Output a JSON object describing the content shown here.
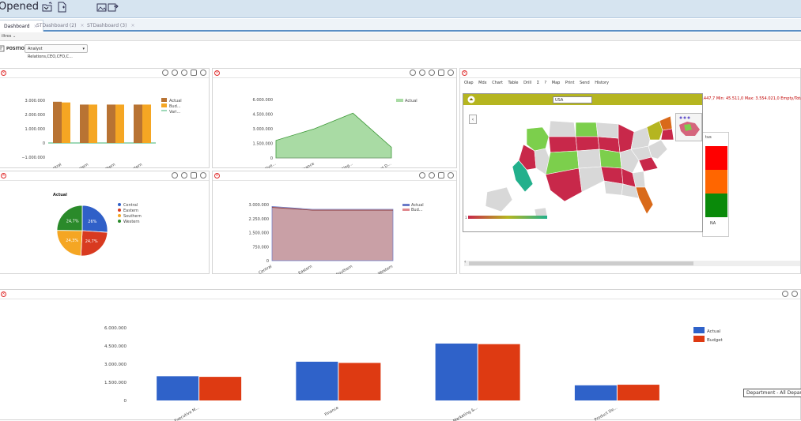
{
  "topbar": {
    "title": "Opened",
    "caret": "⌄"
  },
  "tabs": [
    {
      "label": "Dashboard",
      "close": "×"
    },
    {
      "label": "STDashboard (2)",
      "close": "×"
    },
    {
      "label": "STDashboard (3)",
      "close": "×"
    }
  ],
  "filters": {
    "label": "iltros",
    "caret": "⌄"
  },
  "positions": {
    "label": "POSITIONS:",
    "value": "Analyst Relations,CEO,CFO,C...",
    "caret": "▾"
  },
  "panels": {
    "bar_regions": {
      "yticks": [
        "3.000.000",
        "2.000.000",
        "1.000.000",
        "0",
        "−1.000.000"
      ],
      "categories": [
        "Central",
        "Eastern",
        "Southern",
        "Western"
      ],
      "legend": [
        "Actual",
        "Bud...",
        "Vari..."
      ],
      "colors": {
        "actual": "#b87333",
        "budget": "#f5a623",
        "variance": "#3cb371"
      }
    },
    "area_departments": {
      "yticks": [
        "6.000.000",
        "4.500.000",
        "3.000.000",
        "1.500.000",
        "0"
      ],
      "categories": [
        "Executive...",
        "Finance",
        "Marketing...",
        "Product D..."
      ],
      "legend": [
        "Actual"
      ],
      "color": "#a9dba4"
    },
    "pie_regions": {
      "title": "Actual",
      "slices": [
        {
          "name": "Central",
          "label": "26%",
          "color": "#3060c8"
        },
        {
          "name": "Eastern",
          "label": "24,7%",
          "color": "#d83a20"
        },
        {
          "name": "Southern",
          "label": "24,3%",
          "color": "#f5a623"
        },
        {
          "name": "Western",
          "label": "24,7%",
          "color": "#2a8a2a"
        }
      ]
    },
    "area_regions": {
      "yticks": [
        "3.000.000",
        "2.250.000",
        "1.500.000",
        "750.000",
        "0"
      ],
      "categories": [
        "Central",
        "Eastern",
        "Southern",
        "Western"
      ],
      "legend": [
        "Actual",
        "Bud..."
      ],
      "color": "#c9a0a6"
    },
    "map": {
      "toolbar": [
        "Olap",
        "Mdx",
        "Chart",
        "Table",
        "Drill",
        "Σ",
        "?",
        "Map",
        "Print",
        "Send",
        "History"
      ],
      "country": "USA",
      "stats": "Sum: 10.516.029,0   Avg: 1.168.447,7   Min: 45.511,0   Max: 3.554.021,0   Empty/Total",
      "status_header": "tus",
      "status_foot": "NA",
      "legend_start": "1"
    },
    "bottom_bar": {
      "yticks": [
        "6.000.000",
        "4.500.000",
        "3.000.000",
        "1.500.000",
        "0"
      ],
      "categories": [
        "Executive M...",
        "Finance",
        "Marketing &...",
        "Product De..."
      ],
      "legend": [
        "Actual",
        "Budget"
      ],
      "colors": {
        "actual": "#2f62c9",
        "budget": "#de3a12"
      },
      "dimension_label": "Department - All Depart"
    }
  },
  "chart_data": [
    {
      "type": "bar",
      "categories": [
        "Central",
        "Eastern",
        "Southern",
        "Western"
      ],
      "series": [
        {
          "name": "Actual",
          "values": [
            2900000,
            2700000,
            2700000,
            2700000
          ]
        },
        {
          "name": "Bud...",
          "values": [
            2850000,
            2700000,
            2700000,
            2700000
          ]
        },
        {
          "name": "Vari...",
          "values": [
            0,
            0,
            0,
            0
          ]
        }
      ],
      "ylim": [
        -1000000,
        3000000
      ]
    },
    {
      "type": "area",
      "categories": [
        "Executive...",
        "Finance",
        "Marketing...",
        "Product D..."
      ],
      "series": [
        {
          "name": "Actual",
          "values": [
            1800000,
            3000000,
            4600000,
            1100000
          ]
        }
      ],
      "ylim": [
        0,
        6000000
      ]
    },
    {
      "type": "pie",
      "title": "Actual",
      "categories": [
        "Central",
        "Eastern",
        "Southern",
        "Western"
      ],
      "values": [
        26,
        24.7,
        24.3,
        24.7
      ]
    },
    {
      "type": "area",
      "categories": [
        "Central",
        "Eastern",
        "Southern",
        "Western"
      ],
      "series": [
        {
          "name": "Actual",
          "values": [
            2900000,
            2750000,
            2750000,
            2750000
          ]
        },
        {
          "name": "Bud...",
          "values": [
            2850000,
            2700000,
            2700000,
            2700000
          ]
        }
      ],
      "ylim": [
        0,
        3000000
      ]
    },
    {
      "type": "bar",
      "categories": [
        "Executive M...",
        "Finance",
        "Marketing &...",
        "Product De..."
      ],
      "series": [
        {
          "name": "Actual",
          "values": [
            2000000,
            3200000,
            4700000,
            1250000
          ]
        },
        {
          "name": "Budget",
          "values": [
            1950000,
            3100000,
            4650000,
            1300000
          ]
        }
      ],
      "ylim": [
        0,
        6000000
      ]
    }
  ]
}
